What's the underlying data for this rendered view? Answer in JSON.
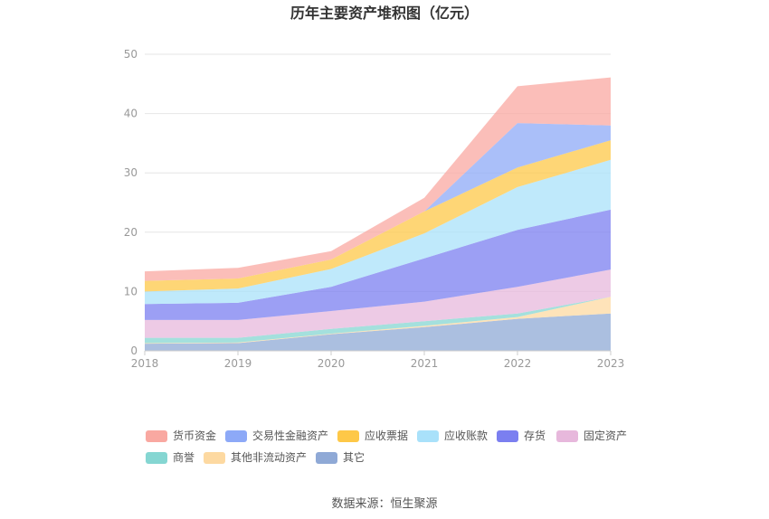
{
  "chart_data": {
    "type": "area",
    "stacked": true,
    "title": "历年主要资产堆积图（亿元）",
    "x": [
      "2018",
      "2019",
      "2020",
      "2021",
      "2022",
      "2023"
    ],
    "ylim": [
      0,
      50
    ],
    "yticks": [
      "0",
      "10",
      "20",
      "30",
      "40",
      "50"
    ],
    "grid": true,
    "legend_position": "bottom",
    "series": [
      {
        "name": "其它",
        "color": "#8fa9d6",
        "values": [
          1.2,
          1.3,
          2.8,
          4.0,
          5.4,
          6.3
        ]
      },
      {
        "name": "其他非流动资产",
        "color": "#fdd9a1",
        "values": [
          0.1,
          0.1,
          0.1,
          0.2,
          0.3,
          2.8
        ]
      },
      {
        "name": "商誉",
        "color": "#85d6d2",
        "values": [
          0.9,
          0.8,
          0.8,
          0.8,
          0.6,
          0.0
        ]
      },
      {
        "name": "固定资产",
        "color": "#e7b8dc",
        "values": [
          3.0,
          3.0,
          3.0,
          3.3,
          4.5,
          4.6
        ]
      },
      {
        "name": "存货",
        "color": "#7b7ff0",
        "values": [
          2.7,
          2.9,
          4.1,
          7.3,
          9.6,
          10.1
        ]
      },
      {
        "name": "应收账款",
        "color": "#a9e1fa",
        "values": [
          2.1,
          2.4,
          3.0,
          4.2,
          7.2,
          8.4
        ]
      },
      {
        "name": "应收票据",
        "color": "#fec848",
        "values": [
          1.8,
          1.7,
          1.6,
          3.7,
          3.3,
          3.3
        ]
      },
      {
        "name": "交易性金融资产",
        "color": "#8da9f7",
        "values": [
          0.0,
          0.0,
          0.0,
          0.0,
          7.5,
          2.5
        ]
      },
      {
        "name": "货币资金",
        "color": "#f9a8a1",
        "values": [
          1.6,
          1.8,
          1.4,
          2.3,
          6.2,
          8.1
        ]
      }
    ]
  },
  "legend": {
    "rows": [
      [
        {
          "name": "货币资金",
          "color": "#f9a8a1"
        },
        {
          "name": "交易性金融资产",
          "color": "#8da9f7"
        },
        {
          "name": "应收票据",
          "color": "#fec848"
        },
        {
          "name": "应收账款",
          "color": "#a9e1fa"
        },
        {
          "name": "存货",
          "color": "#7b7ff0"
        },
        {
          "name": "固定资产",
          "color": "#e7b8dc"
        }
      ],
      [
        {
          "name": "商誉",
          "color": "#85d6d2"
        },
        {
          "name": "其他非流动资产",
          "color": "#fdd9a1"
        },
        {
          "name": "其它",
          "color": "#8fa9d6"
        }
      ]
    ]
  },
  "source_text": "数据来源：恒生聚源"
}
